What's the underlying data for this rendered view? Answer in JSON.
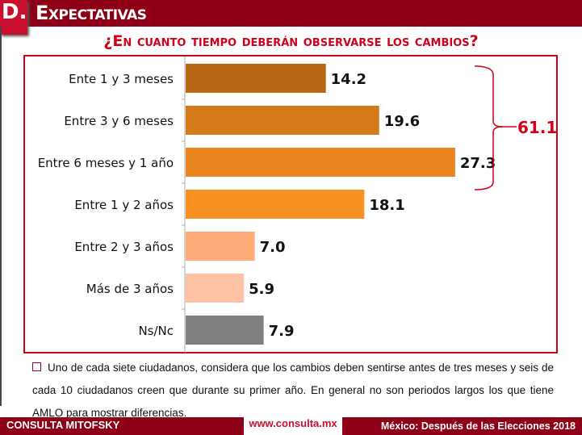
{
  "header": {
    "letter": "D.",
    "title": "Expectativas"
  },
  "chart_data": {
    "type": "bar",
    "orientation": "horizontal",
    "title": "¿En cuanto tiempo deberán observarse los cambios?",
    "categories": [
      "Ente 1 y 3 meses",
      "Entre 3 y 6 meses",
      "Entre 6 meses y 1 año",
      "Entre 1 y 2 años",
      "Entre 2 y 3 años",
      "Más de 3 años",
      "Ns/Nc"
    ],
    "values": [
      14.2,
      19.6,
      27.3,
      18.1,
      7.0,
      5.9,
      7.9
    ],
    "data_labels": [
      "14.2",
      "19.6",
      "27.3",
      "18.1",
      "7.0",
      "5.9",
      "7.9"
    ],
    "colors": [
      "#b86815",
      "#d47a1b",
      "#e9861f",
      "#f79222",
      "#fdaa78",
      "#fec3a4",
      "#808080"
    ],
    "bracket": {
      "label": "61.1",
      "spans": [
        "Ente 1 y 3 meses",
        "Entre 3 y 6 meses",
        "Entre 6 meses y 1 año"
      ],
      "color": "#d0021b"
    },
    "grid": false
  },
  "note": "Uno de cada siete ciudadanos, considera que los cambios deben sentirse antes de tres meses y seis de cada 10 ciudadanos creen que durante su primer año. En general no son periodos largos los que tiene AMLO para mostrar diferencias.",
  "footer": {
    "brand": "CONSULTA MITOFSKY",
    "url": "www.consulta.mx",
    "right": "México: Después de las Elecciones 2018"
  }
}
